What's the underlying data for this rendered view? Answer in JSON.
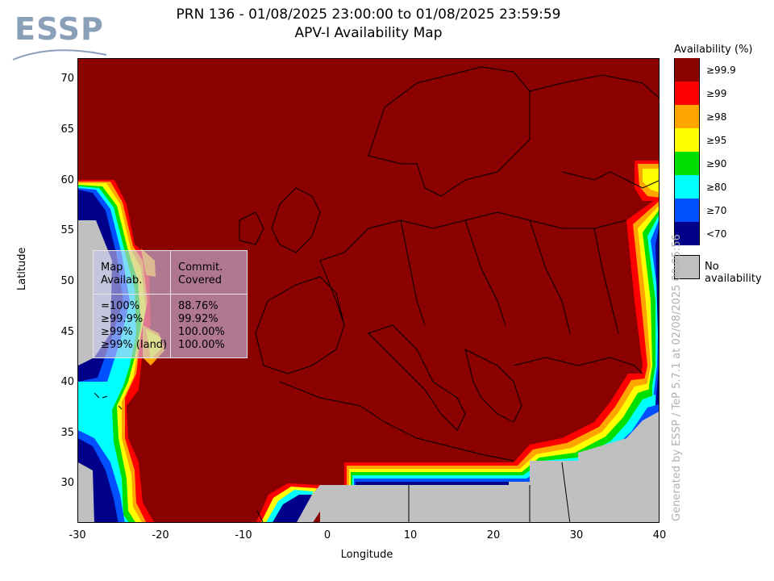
{
  "logo": {
    "text": "ESSP"
  },
  "title": {
    "line1": "PRN 136 - 01/08/2025 23:00:00 to 01/08/2025 23:59:59",
    "line2": "APV-I Availability Map"
  },
  "axes": {
    "xlabel": "Longitude",
    "ylabel": "Latitude",
    "xticks": [
      "-30",
      "-20",
      "-10",
      "0",
      "10",
      "20",
      "30",
      "40"
    ],
    "yticks": [
      "70",
      "65",
      "60",
      "55",
      "50",
      "45",
      "40",
      "35",
      "30"
    ],
    "xrange": [
      -30,
      40
    ],
    "yrange": [
      26,
      72
    ]
  },
  "legend": {
    "title": "Availability (%)",
    "items": [
      {
        "label": "≥99.9",
        "color": "#8b0000"
      },
      {
        "label": "≥99",
        "color": "#ff0000"
      },
      {
        "label": "≥98",
        "color": "#ffa500"
      },
      {
        "label": "≥95",
        "color": "#ffff00"
      },
      {
        "label": "≥90",
        "color": "#00e000"
      },
      {
        "label": "≥80",
        "color": "#00ffff"
      },
      {
        "label": "≥70",
        "color": "#0050ff"
      },
      {
        "label": "<70",
        "color": "#00008b"
      }
    ],
    "no_availability": {
      "label": "No availability",
      "color": "#c0c0c0"
    }
  },
  "stats_table": {
    "header_left": "Map\nAvailab.",
    "header_right": "Commit.\nCovered",
    "rows_left": "=100%\n≥99.9%\n≥99%\n≥99% (land)",
    "rows_right": "88.76%\n99.92%\n100.00%\n100.00%"
  },
  "footer": {
    "generated": "Generated by ESSP / TeP 5.7.1 at 02/08/2025 00:05:56"
  }
}
